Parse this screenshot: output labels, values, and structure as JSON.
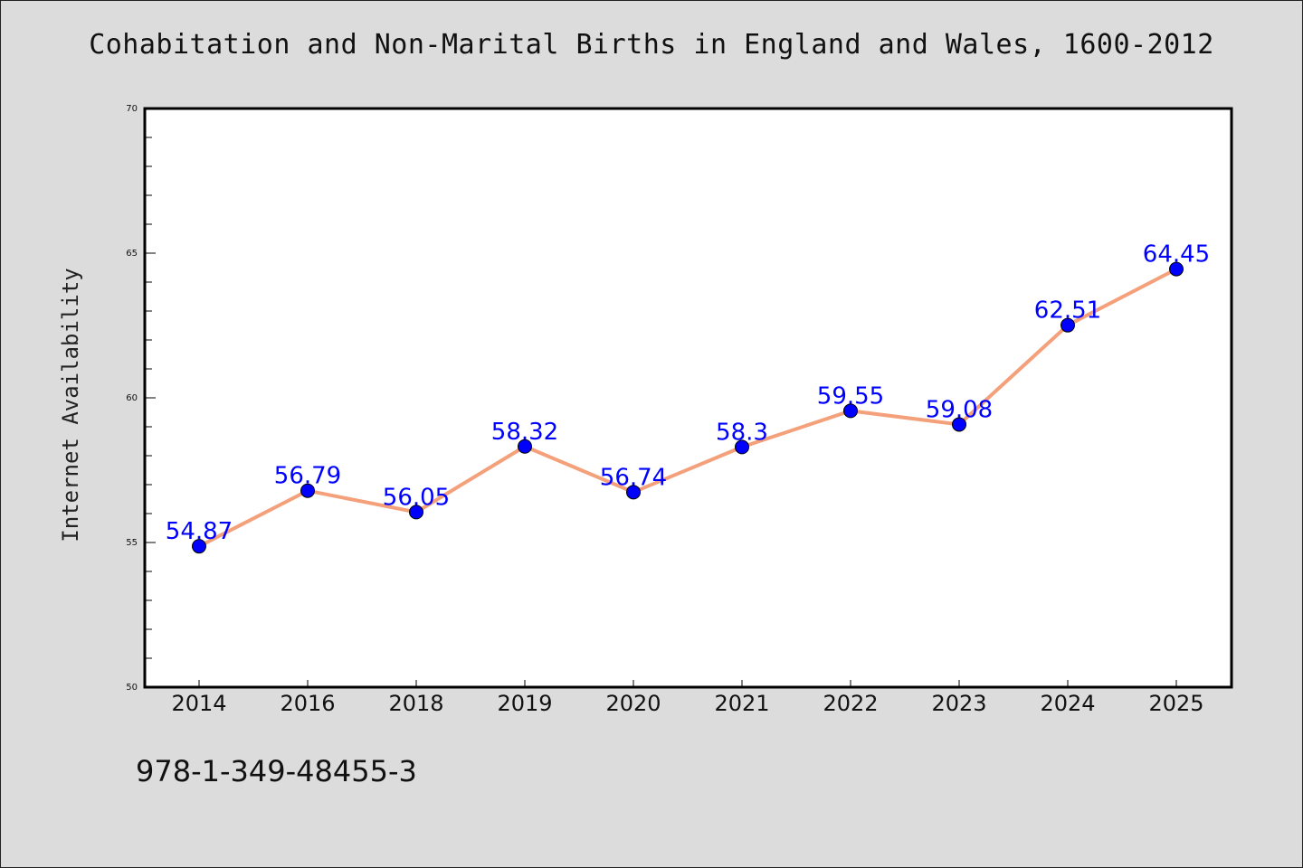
{
  "chart_data": {
    "type": "line",
    "title": "Cohabitation and Non-Marital Births in England and Wales, 1600-2012",
    "xlabel": "",
    "ylabel": "Internet Availability",
    "categories": [
      "2014",
      "2016",
      "2018",
      "2019",
      "2020",
      "2021",
      "2022",
      "2023",
      "2024",
      "2025"
    ],
    "series": [
      {
        "values": [
          54.87,
          56.79,
          56.05,
          58.32,
          56.74,
          58.3,
          59.55,
          59.08,
          62.51,
          64.45
        ],
        "labels": [
          "54.87",
          "56.79",
          "56.05",
          "58.32",
          "56.74",
          "58.3",
          "59.55",
          "59.08",
          "62.51",
          "64.45"
        ],
        "line_color": "#f4a07a",
        "marker_color": "#0000ff"
      }
    ],
    "ylim": [
      50,
      70
    ],
    "yticks": [
      "50",
      "55",
      "60",
      "65",
      "70"
    ],
    "label_color": "#0000ff",
    "grid": false,
    "legend": "none"
  },
  "footer_text": "978-1-349-48455-3"
}
